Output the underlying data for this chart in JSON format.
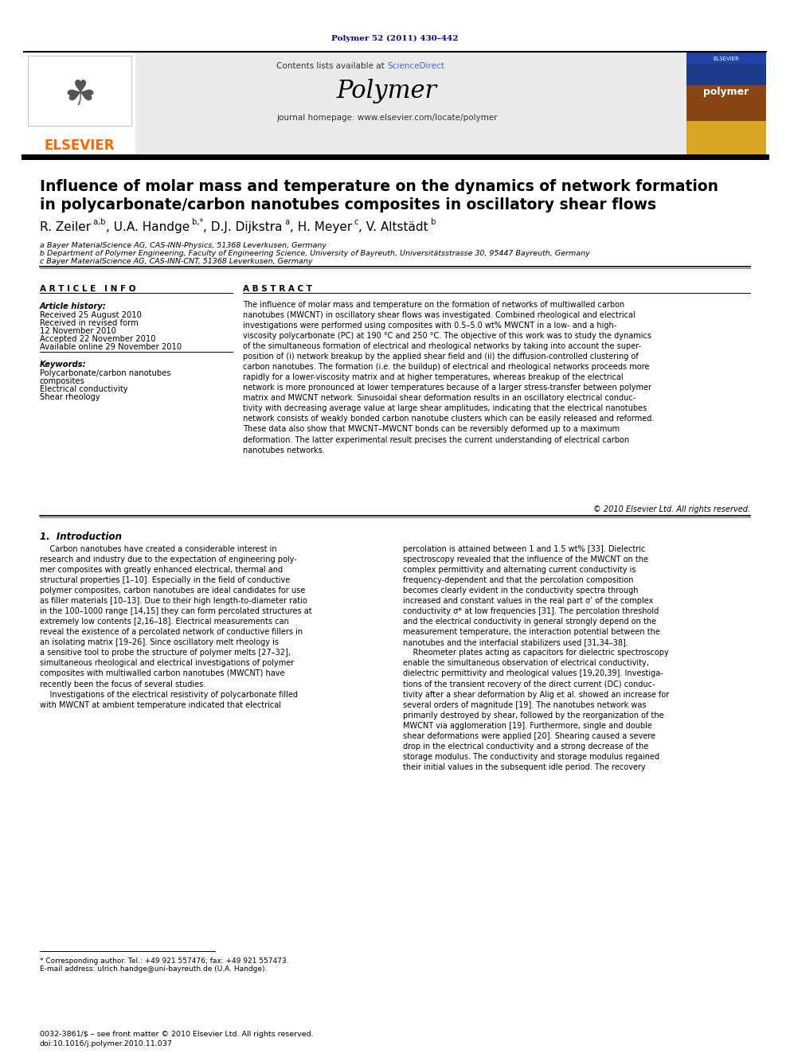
{
  "page_bg": "#ffffff",
  "top_doi": "Polymer 52 (2011) 430–442",
  "doi_color": "#00008B",
  "journal_name": "Polymer",
  "contents_text": "Contents lists available at ",
  "sciencedirect_text": "ScienceDirect",
  "sciencedirect_color": "#4169E1",
  "homepage_text": "journal homepage: www.elsevier.com/locate/polymer",
  "header_bg": "#e8e8e8",
  "paper_title_line1": "Influence of molar mass and temperature on the dynamics of network formation",
  "paper_title_line2": "in polycarbonate/carbon nanotubes composites in oscillatory shear flows",
  "affil_a": "a Bayer MaterialScience AG, CAS-INN-Physics, 51368 Leverkusen, Germany",
  "affil_b": "b Department of Polymer Engineering, Faculty of Engineering Science, University of Bayreuth, Universitätsstrasse 30, 95447 Bayreuth, Germany",
  "affil_c": "c Bayer MaterialScience AG, CAS-INN-CNT, 51368 Leverkusen, Germany",
  "article_info_title": "A R T I C L E   I N F O",
  "article_history_label": "Article history:",
  "received1": "Received 25 August 2010",
  "received2": "Received in revised form",
  "received2b": "12 November 2010",
  "accepted": "Accepted 22 November 2010",
  "available": "Available online 29 November 2010",
  "keywords_label": "Keywords:",
  "kw1": "Polycarbonate/carbon nanotubes",
  "kw2": "composites",
  "kw3": "Electrical conductivity",
  "kw4": "Shear rheology",
  "abstract_title": "A B S T R A C T",
  "abstract_text": "The influence of molar mass and temperature on the formation of networks of multiwalled carbon\nnanotubes (MWCNT) in oscillatory shear flows was investigated. Combined rheological and electrical\ninvestigations were performed using composites with 0.5–5.0 wt% MWCNT in a low- and a high-\nviscosity polycarbonate (PC) at 190 °C and 250 °C. The objective of this work was to study the dynamics\nof the simultaneous formation of electrical and rheological networks by taking into account the super-\nposition of (i) network breakup by the applied shear field and (ii) the diffusion-controlled clustering of\ncarbon nanotubes. The formation (i.e. the buildup) of electrical and rheological networks proceeds more\nrapidly for a lower-viscosity matrix and at higher temperatures, whereas breakup of the electrical\nnetwork is more pronounced at lower temperatures because of a larger stress-transfer between polymer\nmatrix and MWCNT network. Sinusoidal shear deformation results in an oscillatory electrical conduc-\ntivity with decreasing average value at large shear amplitudes, indicating that the electrical nanotubes\nnetwork consists of weakly bonded carbon nanotube clusters which can be easily released and reformed.\nThese data also show that MWCNT–MWCNT bonds can be reversibly deformed up to a maximum\ndeformation. The latter experimental result precises the current understanding of electrical carbon\nnanotubes networks.",
  "copyright": "© 2010 Elsevier Ltd. All rights reserved.",
  "intro_title": "1.  Introduction",
  "intro_col1": "    Carbon nanotubes have created a considerable interest in\nresearch and industry due to the expectation of engineering poly-\nmer composites with greatly enhanced electrical, thermal and\nstructural properties [1–10]. Especially in the field of conductive\npolymer composites, carbon nanotubes are ideal candidates for use\nas filler materials [10–13]. Due to their high length-to-diameter ratio\nin the 100–1000 range [14,15] they can form percolated structures at\nextremely low contents [2,16–18]. Electrical measurements can\nreveal the existence of a percolated network of conductive fillers in\nan isolating matrix [19–26]. Since oscillatory melt rheology is\na sensitive tool to probe the structure of polymer melts [27–32],\nsimultaneous rheological and electrical investigations of polymer\ncomposites with multiwalled carbon nanotubes (MWCNT) have\nrecently been the focus of several studies.\n    Investigations of the electrical resistivity of polycarbonate filled\nwith MWCNT at ambient temperature indicated that electrical",
  "intro_col2": "percolation is attained between 1 and 1.5 wt% [33]. Dielectric\nspectroscopy revealed that the influence of the MWCNT on the\ncomplex permittivity and alternating current conductivity is\nfrequency-dependent and that the percolation composition\nbecomes clearly evident in the conductivity spectra through\nincreased and constant values in the real part σ’ of the complex\nconductivity σ* at low frequencies [31]. The percolation threshold\nand the electrical conductivity in general strongly depend on the\nmeasurement temperature, the interaction potential between the\nnanotubes and the interfacial stabilizers used [31,34–38].\n    Rheometer plates acting as capacitors for dielectric spectroscopy\nenable the simultaneous observation of electrical conductivity,\ndielectric permittivity and rheological values [19,20,39]. Investiga-\ntions of the transient recovery of the direct current (DC) conduc-\ntivity after a shear deformation by Alig et al. showed an increase for\nseveral orders of magnitude [19]. The nanotubes network was\nprimarily destroyed by shear, followed by the reorganization of the\nMWCNT via agglomeration [19]. Furthermore, single and double\nshear deformations were applied [20]. Shearing caused a severe\ndrop in the electrical conductivity and a strong decrease of the\nstorage modulus. The conductivity and storage modulus regained\ntheir initial values in the subsequent idle period. The recovery",
  "footnote_star": "* Corresponding author. Tel.: +49 921 557476; fax: +49 921 557473.",
  "footnote_email": "E-mail address: ulrich.handge@uni-bayreuth.de (U.A. Handge).",
  "footer_issn": "0032-3861/$ – see front matter © 2010 Elsevier Ltd. All rights reserved.",
  "footer_doi": "doi:10.1016/j.polymer.2010.11.037",
  "elsevier_color": "#FF6600",
  "elsevier_text": "ELSEVIER"
}
